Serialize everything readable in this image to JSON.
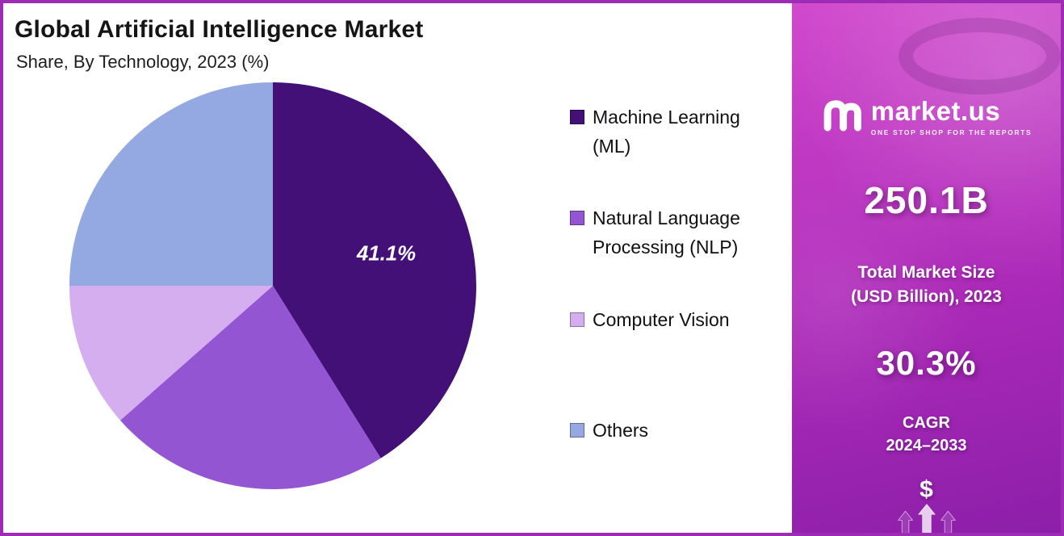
{
  "header": {
    "title": "Global Artificial Intelligence Market",
    "subtitle": "Share, By Technology, 2023 (%)"
  },
  "chart_data": {
    "type": "pie",
    "title": "Global Artificial Intelligence Market Share, By Technology, 2023 (%)",
    "labels": [
      "Machine Learning (ML)",
      "Natural Language Processing (NLP)",
      "Computer Vision",
      "Others"
    ],
    "values": [
      41.1,
      22.4,
      11.5,
      25.0
    ],
    "colors": [
      "#431078",
      "#9355d2",
      "#d5aeef",
      "#94a9e2"
    ],
    "data_labels": [
      "41.1%",
      "",
      "",
      ""
    ],
    "start_angle": "12 o'clock",
    "direction": "clockwise",
    "legend_position": "right"
  },
  "sidebar": {
    "brand": "market.us",
    "tagline": "ONE STOP SHOP FOR THE REPORTS",
    "market_size_value": "250.1B",
    "market_size_label_line1": "Total Market Size",
    "market_size_label_line2": "(USD Billion), 2023",
    "cagr_value": "30.3%",
    "cagr_label": "CAGR",
    "cagr_period": "2024–2033",
    "dollar_icon": "$",
    "background_top": "#d14acd",
    "background_bottom": "#8c1fa9"
  },
  "frame": {
    "border_color": "#9e2bb4"
  }
}
